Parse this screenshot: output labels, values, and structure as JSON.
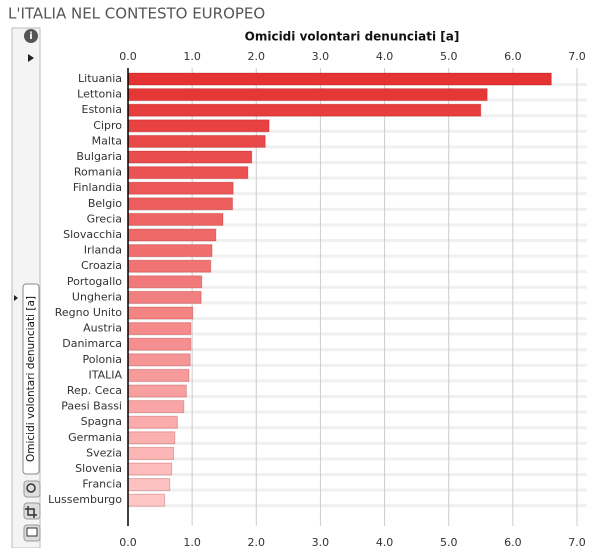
{
  "page_title": "L'ITALIA NEL CONTESTO EUROPEO",
  "chart_data": {
    "type": "hbar",
    "title": "Omicidi volontari denunciati [a]",
    "side_label": "Omicidi volontari denunciati [a]",
    "categories": [
      "Lituania",
      "Lettonia",
      "Estonia",
      "Cipro",
      "Malta",
      "Bulgaria",
      "Romania",
      "Finlandia",
      "Belgio",
      "Grecia",
      "Slovacchia",
      "Irlanda",
      "Croazia",
      "Portogallo",
      "Ungheria",
      "Regno Unito",
      "Austria",
      "Danimarca",
      "Polonia",
      "ITALIA",
      "Rep. Ceca",
      "Paesi Bassi",
      "Spagna",
      "Germania",
      "Svezia",
      "Slovenia",
      "Francia",
      "Lussemburgo"
    ],
    "values": [
      6.6,
      5.6,
      5.5,
      2.2,
      2.14,
      1.93,
      1.87,
      1.64,
      1.63,
      1.48,
      1.37,
      1.31,
      1.29,
      1.15,
      1.14,
      1.01,
      0.98,
      0.98,
      0.97,
      0.95,
      0.91,
      0.87,
      0.77,
      0.73,
      0.71,
      0.68,
      0.65,
      0.57
    ],
    "color_scale": [
      "#e53232",
      "#ffc6c6"
    ],
    "xlim": [
      0,
      7
    ],
    "xticks": [
      {
        "value": 0,
        "label": "0.0"
      },
      {
        "value": 1,
        "label": "1.0"
      },
      {
        "value": 2,
        "label": "2.0"
      },
      {
        "value": 3,
        "label": "3.0"
      },
      {
        "value": 4,
        "label": "4.0"
      },
      {
        "value": 5,
        "label": "5.0"
      },
      {
        "value": 6,
        "label": "6.0"
      },
      {
        "value": 7,
        "label": "7.0"
      }
    ],
    "grid": true
  }
}
